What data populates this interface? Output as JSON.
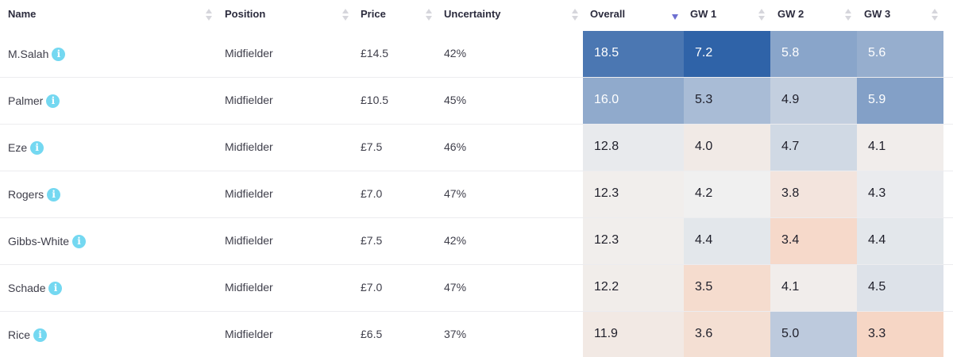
{
  "columns": {
    "name": "Name",
    "position": "Position",
    "price": "Price",
    "uncertainty": "Uncertainty",
    "overall": "Overall",
    "gw1": "GW 1",
    "gw2": "GW 2",
    "gw3": "GW 3"
  },
  "sort": {
    "column": "Overall",
    "direction": "descending"
  },
  "rows": [
    {
      "name": "M.Salah",
      "position": "Midfielder",
      "price": "£14.5",
      "uncertainty": "42%",
      "overall": "18.5",
      "gw1": "7.2",
      "gw2": "5.8",
      "gw3": "5.6"
    },
    {
      "name": "Palmer",
      "position": "Midfielder",
      "price": "£10.5",
      "uncertainty": "45%",
      "overall": "16.0",
      "gw1": "5.3",
      "gw2": "4.9",
      "gw3": "5.9"
    },
    {
      "name": "Eze",
      "position": "Midfielder",
      "price": "£7.5",
      "uncertainty": "46%",
      "overall": "12.8",
      "gw1": "4.0",
      "gw2": "4.7",
      "gw3": "4.1"
    },
    {
      "name": "Rogers",
      "position": "Midfielder",
      "price": "£7.0",
      "uncertainty": "47%",
      "overall": "12.3",
      "gw1": "4.2",
      "gw2": "3.8",
      "gw3": "4.3"
    },
    {
      "name": "Gibbs-White",
      "position": "Midfielder",
      "price": "£7.5",
      "uncertainty": "42%",
      "overall": "12.3",
      "gw1": "4.4",
      "gw2": "3.4",
      "gw3": "4.4"
    },
    {
      "name": "Schade",
      "position": "Midfielder",
      "price": "£7.0",
      "uncertainty": "47%",
      "overall": "12.2",
      "gw1": "3.5",
      "gw2": "4.1",
      "gw3": "4.5"
    },
    {
      "name": "Rice",
      "position": "Midfielder",
      "price": "£6.5",
      "uncertainty": "37%",
      "overall": "11.9",
      "gw1": "3.6",
      "gw2": "5.0",
      "gw3": "3.3"
    }
  ],
  "info_icon": "info-icon",
  "colors": {
    "heat_high": "#2f63a8",
    "heat_neutral": "#f0f0f0",
    "heat_low": "#f7d3c0",
    "info_badge": "#74d8f1",
    "sort_active": "#6d6fd1"
  }
}
